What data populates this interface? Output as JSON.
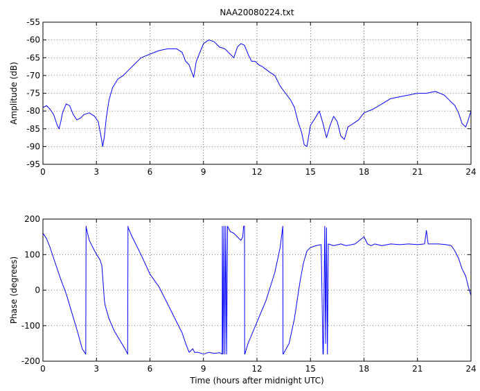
{
  "figure": {
    "title": "NAA20080224.txt",
    "line_color": "#0000ff"
  },
  "chart_data": [
    {
      "type": "line",
      "title": "NAA20080224.txt",
      "xlabel": "",
      "ylabel": "Amplitude (dB)",
      "xlim": [
        0,
        24
      ],
      "ylim": [
        -95,
        -55
      ],
      "xticks": [
        0,
        3,
        6,
        9,
        12,
        15,
        18,
        21,
        24
      ],
      "yticks": [
        -95,
        -90,
        -85,
        -80,
        -75,
        -70,
        -65,
        -60,
        -55
      ],
      "grid": "dotted",
      "series": [
        {
          "x": [
            0,
            0.2,
            0.4,
            0.6,
            0.8,
            0.9,
            1.0,
            1.1,
            1.3,
            1.5,
            1.7,
            1.9,
            2.1,
            2.3,
            2.6,
            2.9,
            3.1,
            3.25,
            3.35,
            3.45,
            3.55,
            3.7,
            3.9,
            4.2,
            4.5,
            4.8,
            5.1,
            5.5,
            6.0,
            6.5,
            7.0,
            7.5,
            7.8,
            8.0,
            8.2,
            8.3,
            8.45,
            8.6,
            8.8,
            9.0,
            9.3,
            9.6,
            9.9,
            10.2,
            10.5,
            10.7,
            10.9,
            11.1,
            11.3,
            11.5,
            11.7,
            11.9,
            12.1,
            12.3,
            12.7,
            13.0,
            13.3,
            13.6,
            13.9,
            14.1,
            14.3,
            14.5,
            14.65,
            14.8,
            15.0,
            15.2,
            15.5,
            15.7,
            15.9,
            16.1,
            16.3,
            16.5,
            16.7,
            16.9,
            17.1,
            17.4,
            17.7,
            18.0,
            18.5,
            19.0,
            19.5,
            20.0,
            20.5,
            21.0,
            21.5,
            22.0,
            22.5,
            22.8,
            23.1,
            23.3,
            23.5,
            23.7,
            23.85,
            24.0
          ],
          "y": [
            -79,
            -78.5,
            -79.5,
            -81,
            -84,
            -85,
            -83,
            -80.5,
            -78,
            -78.5,
            -81,
            -82.5,
            -82,
            -81,
            -80.5,
            -81.5,
            -83,
            -87,
            -90,
            -87,
            -82,
            -77,
            -73.5,
            -71,
            -70,
            -68.5,
            -67,
            -65,
            -64,
            -63,
            -62.5,
            -62.5,
            -63.5,
            -66,
            -67,
            -68.5,
            -70.5,
            -66,
            -63.5,
            -61,
            -60,
            -60.5,
            -62,
            -62.5,
            -64,
            -65,
            -62,
            -61,
            -61.5,
            -64,
            -66,
            -66,
            -67,
            -67.5,
            -69,
            -70,
            -73,
            -75,
            -77,
            -79,
            -83,
            -86,
            -89.5,
            -90,
            -84,
            -82.5,
            -80,
            -83.5,
            -87.5,
            -84,
            -81.5,
            -83,
            -87,
            -88,
            -84.5,
            -83.5,
            -82.5,
            -80.5,
            -79.5,
            -78,
            -76.5,
            -76,
            -75.5,
            -75,
            -75,
            -74.5,
            -75.5,
            -77,
            -78.5,
            -80.5,
            -83.5,
            -84.5,
            -82.5,
            -80
          ]
        }
      ]
    },
    {
      "type": "line",
      "title": "",
      "xlabel": "Time (hours after midnight UTC)",
      "ylabel": "Phase (degrees)",
      "xlim": [
        0,
        24
      ],
      "ylim": [
        -200,
        200
      ],
      "xticks": [
        0,
        3,
        6,
        9,
        12,
        15,
        18,
        21,
        24
      ],
      "yticks": [
        -200,
        -100,
        0,
        100,
        200
      ],
      "grid": "dotted",
      "series": [
        {
          "x": [
            0,
            0.2,
            0.4,
            0.7,
            1.0,
            1.3,
            1.6,
            1.9,
            2.2,
            2.4,
            2.42,
            2.43,
            2.6,
            2.9,
            3.2,
            3.3,
            3.45,
            3.5,
            3.7,
            4.0,
            4.3,
            4.6,
            4.75,
            4.77,
            4.78,
            5.0,
            5.5,
            6.0,
            6.5,
            7.0,
            7.5,
            7.8,
            8.0,
            8.2,
            8.4,
            8.5,
            8.7,
            9.0,
            9.3,
            9.6,
            9.9,
            10.05,
            10.06,
            10.1,
            10.15,
            10.2,
            10.25,
            10.3,
            10.35,
            10.5,
            10.7,
            10.9,
            11.1,
            11.2,
            11.25,
            11.3,
            11.31,
            11.32,
            11.5,
            12.0,
            12.5,
            13.0,
            13.3,
            13.45,
            13.46,
            13.47,
            13.8,
            14.1,
            14.4,
            14.6,
            14.8,
            15.0,
            15.3,
            15.6,
            15.7,
            15.72,
            15.8,
            15.85,
            15.9,
            15.95,
            16.0,
            16.3,
            16.7,
            17.0,
            17.5,
            18.0,
            18.2,
            18.4,
            18.6,
            19.0,
            19.5,
            20.0,
            20.5,
            21.0,
            21.4,
            21.5,
            21.6,
            21.8,
            22.2,
            22.6,
            22.9,
            23.1,
            23.3,
            23.5,
            23.7,
            23.85,
            24.0
          ],
          "y": [
            160,
            145,
            120,
            75,
            30,
            -10,
            -60,
            -110,
            -165,
            -180,
            180,
            175,
            140,
            110,
            85,
            70,
            -30,
            -45,
            -80,
            -115,
            -140,
            -165,
            -180,
            180,
            175,
            150,
            100,
            45,
            10,
            -40,
            -90,
            -120,
            -150,
            -175,
            -165,
            -175,
            -175,
            -180,
            -175,
            -178,
            -176,
            -180,
            180,
            -180,
            180,
            -180,
            180,
            -180,
            180,
            165,
            160,
            150,
            140,
            150,
            180,
            180,
            -180,
            -180,
            -150,
            -90,
            -30,
            50,
            120,
            180,
            -180,
            -180,
            -150,
            -80,
            20,
            75,
            110,
            120,
            125,
            128,
            -180,
            -180,
            180,
            -150,
            175,
            -180,
            130,
            125,
            130,
            125,
            130,
            150,
            130,
            125,
            130,
            125,
            130,
            128,
            130,
            128,
            130,
            168,
            130,
            130,
            130,
            128,
            125,
            110,
            90,
            60,
            40,
            10,
            -15
          ]
        }
      ]
    }
  ]
}
